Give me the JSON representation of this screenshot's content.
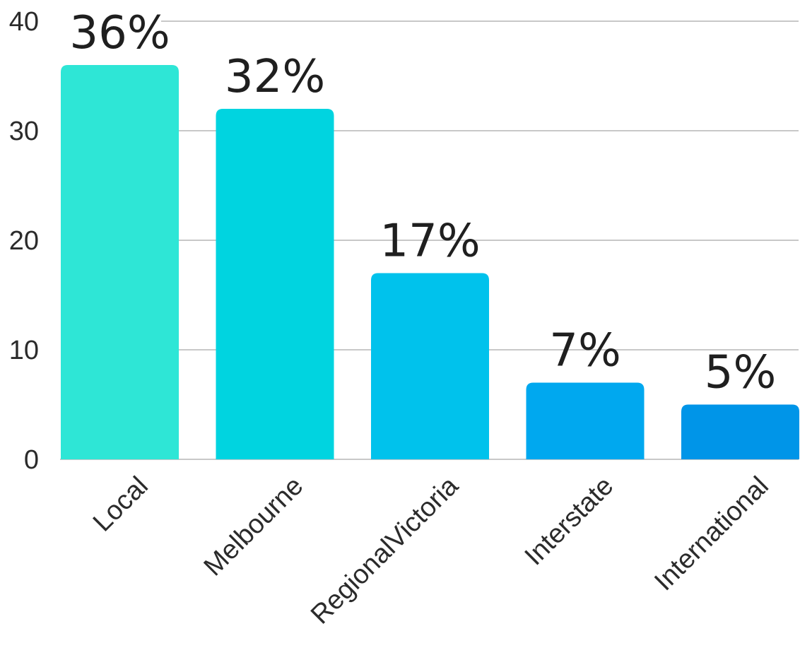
{
  "chart_data": {
    "type": "bar",
    "categories": [
      "Local",
      "Melbourne",
      "RegionalVictoria",
      "Interstate",
      "International"
    ],
    "values": [
      36,
      32,
      17,
      7,
      5
    ],
    "data_labels": [
      "36%",
      "32%",
      "17%",
      "7%",
      "5%"
    ],
    "colors": [
      "#2ee6d6",
      "#00d4e0",
      "#00c2ec",
      "#00a8ef",
      "#0095e8"
    ],
    "yticks": [
      "0",
      "10",
      "20",
      "30",
      "40"
    ],
    "ylim": [
      0,
      40
    ],
    "grid": true,
    "title": "",
    "xlabel": "",
    "ylabel": ""
  }
}
